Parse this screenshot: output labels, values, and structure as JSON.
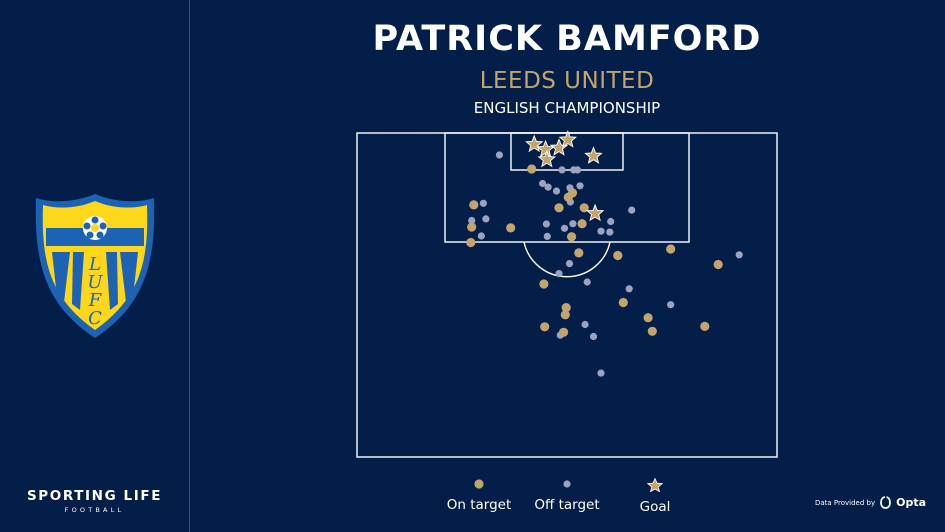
{
  "header": {
    "player": "PATRICK BAMFORD",
    "team": "LEEDS UNITED",
    "competition": "ENGLISH CHAMPIONSHIP"
  },
  "brand": {
    "name": "SPORTING LIFE",
    "sub": "FOOTBALL"
  },
  "crest": {
    "letters": "LUFC"
  },
  "provider": {
    "label": "Data Provided by",
    "brand": "Opta"
  },
  "colors": {
    "background": "#041e4a",
    "on_target": "#c3a46c",
    "off_target": "#9aa3bf",
    "goal": "#c3a46c",
    "lines": "#ffffff",
    "crest_blue": "#1d63b3",
    "crest_yellow": "#ffd71a"
  },
  "legend": [
    {
      "key": "on_target",
      "label": "On target"
    },
    {
      "key": "off_target",
      "label": "Off target"
    },
    {
      "key": "goal",
      "label": "Goal"
    }
  ],
  "chart_data": {
    "type": "scatter",
    "title": "PATRICK BAMFORD",
    "note": "Shot map, attacking half. x = lateral position across the half-pitch from left touchline (0-100); y = distance from the goal line (0-100 of half-pitch length).",
    "xlim": [
      0,
      100
    ],
    "ylim": [
      0,
      100
    ],
    "series": [
      {
        "name": "On target",
        "points": [
          [
            41.6,
            11.1
          ],
          [
            51.3,
            18.5
          ],
          [
            50.3,
            19.8
          ],
          [
            48.1,
            23.1
          ],
          [
            54.1,
            23.1
          ],
          [
            27.8,
            22.2
          ],
          [
            27.3,
            29.0
          ],
          [
            53.6,
            28.0
          ],
          [
            27.1,
            33.8
          ],
          [
            36.6,
            29.3
          ],
          [
            51.1,
            32.0
          ],
          [
            52.8,
            37.0
          ],
          [
            62.1,
            37.8
          ],
          [
            74.7,
            35.8
          ],
          [
            86.0,
            40.6
          ],
          [
            44.5,
            46.6
          ],
          [
            49.8,
            53.9
          ],
          [
            49.6,
            56.1
          ],
          [
            63.4,
            52.3
          ],
          [
            69.3,
            57.0
          ],
          [
            82.8,
            59.7
          ],
          [
            70.3,
            61.2
          ],
          [
            44.7,
            59.8
          ],
          [
            49.2,
            61.5
          ]
        ]
      },
      {
        "name": "Off target",
        "points": [
          [
            33.9,
            6.8
          ],
          [
            44.2,
            15.6
          ],
          [
            45.5,
            16.7
          ],
          [
            51.6,
            11.4
          ],
          [
            48.8,
            11.4
          ],
          [
            52.5,
            11.4
          ],
          [
            50.7,
            16.9
          ],
          [
            47.5,
            17.9
          ],
          [
            53.1,
            16.3
          ],
          [
            60.4,
            27.3
          ],
          [
            30.1,
            21.7
          ],
          [
            65.4,
            23.8
          ],
          [
            60.2,
            30.6
          ],
          [
            58.1,
            30.3
          ],
          [
            51.4,
            28.0
          ],
          [
            30.7,
            26.5
          ],
          [
            45.1,
            28.1
          ],
          [
            50.8,
            21.3
          ],
          [
            27.3,
            27.0
          ],
          [
            29.6,
            31.8
          ],
          [
            49.4,
            29.4
          ],
          [
            45.3,
            31.9
          ],
          [
            50.6,
            40.3
          ],
          [
            48.1,
            43.4
          ],
          [
            54.8,
            46.0
          ],
          [
            64.8,
            48.1
          ],
          [
            54.3,
            59.1
          ],
          [
            56.3,
            62.8
          ],
          [
            48.4,
            62.4
          ],
          [
            58.1,
            74.1
          ],
          [
            74.7,
            53.0
          ],
          [
            91.0,
            37.6
          ]
        ]
      },
      {
        "name": "Goal",
        "points": [
          [
            42.2,
            3.5
          ],
          [
            48.1,
            4.6
          ],
          [
            50.2,
            2.1
          ],
          [
            44.9,
            5.1
          ],
          [
            56.3,
            7.1
          ],
          [
            45.2,
            8.2
          ],
          [
            56.7,
            24.8
          ]
        ]
      }
    ]
  }
}
